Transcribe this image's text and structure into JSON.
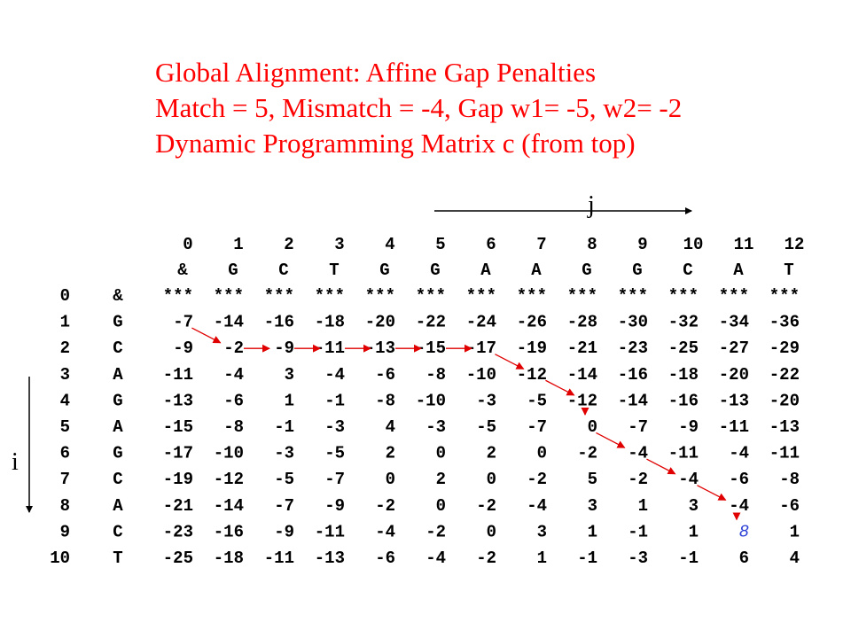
{
  "header": {
    "lines": [
      "Global Alignment: Affine Gap Penalties",
      "Match = 5, Mismatch = -4, Gap w1= -5, w2= -2",
      "Dynamic Programming Matrix c (from top)"
    ]
  },
  "axes": {
    "j": "j",
    "i": "i"
  },
  "matrix": {
    "column_indices": [
      "0",
      "1",
      "2",
      "3",
      "4",
      "5",
      "6",
      "7",
      "8",
      "9",
      "10",
      "11",
      "12"
    ],
    "column_chars": [
      "&",
      "G",
      "C",
      "T",
      "G",
      "G",
      "A",
      "A",
      "G",
      "G",
      "C",
      "A",
      "T"
    ],
    "rows": [
      {
        "index": "0",
        "char": "&",
        "cells": [
          "***",
          "***",
          "***",
          "***",
          "***",
          "***",
          "***",
          "***",
          "***",
          "***",
          "***",
          "***",
          "***"
        ]
      },
      {
        "index": "1",
        "char": "G",
        "cells": [
          "-7",
          "-14",
          "-16",
          "-18",
          "-20",
          "-22",
          "-24",
          "-26",
          "-28",
          "-30",
          "-32",
          "-34",
          "-36"
        ]
      },
      {
        "index": "2",
        "char": "C",
        "cells": [
          "-9",
          "-2",
          "-9",
          "-11",
          "-13",
          "-15",
          "-17",
          "-19",
          "-21",
          "-23",
          "-25",
          "-27",
          "-29"
        ]
      },
      {
        "index": "3",
        "char": "A",
        "cells": [
          "-11",
          "-4",
          "3",
          "-4",
          "-6",
          "-8",
          "-10",
          "-12",
          "-14",
          "-16",
          "-18",
          "-20",
          "-22"
        ]
      },
      {
        "index": "4",
        "char": "G",
        "cells": [
          "-13",
          "-6",
          "1",
          "-1",
          "-8",
          "-10",
          "-3",
          "-5",
          "-12",
          "-14",
          "-16",
          "-13",
          "-20"
        ]
      },
      {
        "index": "5",
        "char": "A",
        "cells": [
          "-15",
          "-8",
          "-1",
          "-3",
          "4",
          "-3",
          "-5",
          "-7",
          "0",
          "-7",
          "-9",
          "-11",
          "-13"
        ]
      },
      {
        "index": "6",
        "char": "G",
        "cells": [
          "-17",
          "-10",
          "-3",
          "-5",
          "2",
          "0",
          "2",
          "0",
          "-2",
          "-4",
          "-11",
          "-4",
          "-11"
        ]
      },
      {
        "index": "7",
        "char": "C",
        "cells": [
          "-19",
          "-12",
          "-5",
          "-7",
          "0",
          "2",
          "0",
          "-2",
          "5",
          "-2",
          "-4",
          "-6",
          "-8"
        ]
      },
      {
        "index": "8",
        "char": "A",
        "cells": [
          "-21",
          "-14",
          "-7",
          "-9",
          "-2",
          "0",
          "-2",
          "-4",
          "3",
          "1",
          "3",
          "-4",
          "-6"
        ]
      },
      {
        "index": "9",
        "char": "C",
        "cells": [
          "-23",
          "-16",
          "-9",
          "-11",
          "-4",
          "-2",
          "0",
          "3",
          "1",
          "-1",
          "1",
          "8",
          "1"
        ]
      },
      {
        "index": "10",
        "char": "T",
        "cells": [
          "-25",
          "-18",
          "-11",
          "-13",
          "-6",
          "-4",
          "-2",
          "1",
          "-1",
          "-3",
          "-1",
          "6",
          "4"
        ]
      }
    ]
  }
}
